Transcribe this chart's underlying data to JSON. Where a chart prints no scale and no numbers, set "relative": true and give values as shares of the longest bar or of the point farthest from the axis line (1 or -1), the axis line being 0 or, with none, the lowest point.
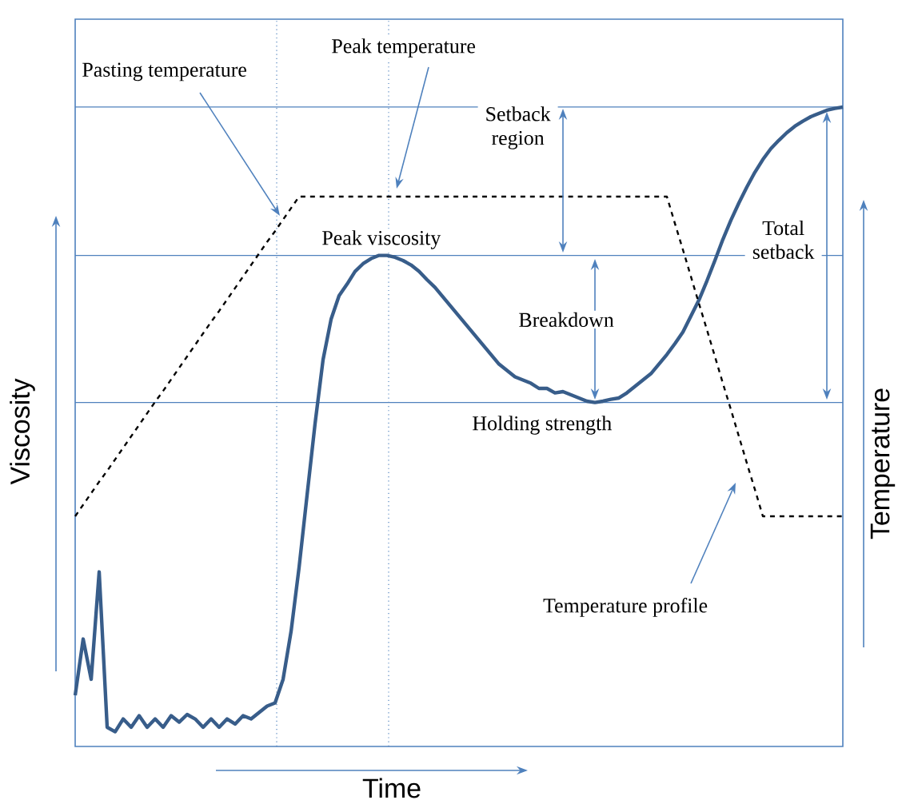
{
  "chart_data": {
    "type": "line",
    "relative": true,
    "xlabel": "Time",
    "ylabel": "Viscosity",
    "y2label": "Temperature",
    "categories": [
      null,
      null,
      null,
      null,
      null,
      null,
      null,
      null,
      null,
      null,
      null,
      null,
      null,
      null,
      null,
      null,
      null,
      null,
      null,
      null,
      null,
      null,
      null,
      null,
      null,
      null,
      null,
      null,
      null,
      null,
      null,
      null,
      null,
      null,
      null,
      null,
      null,
      null,
      null,
      null,
      null,
      null,
      null,
      null,
      null,
      null,
      null,
      null,
      null,
      null,
      null,
      null,
      null,
      null,
      null,
      null,
      null,
      null,
      null,
      null,
      null,
      null,
      null,
      null,
      null,
      null,
      null,
      null,
      null,
      null,
      null,
      null,
      null,
      null,
      null,
      null,
      null,
      null,
      null,
      null,
      null,
      null,
      null,
      null,
      null,
      null,
      null,
      null,
      null,
      null,
      null,
      null,
      null,
      null,
      null,
      null,
      null
    ],
    "series": [
      {
        "color": "#385d8a",
        "line_style": "solid",
        "values": [
          0.08,
          0.168,
          0.105,
          0.273,
          0.03,
          0.023,
          0.043,
          0.03,
          0.048,
          0.03,
          0.043,
          0.03,
          0.048,
          0.038,
          0.05,
          0.043,
          0.03,
          0.043,
          0.03,
          0.043,
          0.035,
          0.048,
          0.043,
          0.053,
          0.063,
          0.068,
          0.105,
          0.18,
          0.28,
          0.393,
          0.505,
          0.605,
          0.668,
          0.705,
          0.723,
          0.743,
          0.755,
          0.763,
          0.768,
          0.768,
          0.765,
          0.76,
          0.753,
          0.743,
          0.73,
          0.718,
          0.703,
          0.688,
          0.673,
          0.658,
          0.643,
          0.628,
          0.613,
          0.598,
          0.588,
          0.578,
          0.573,
          0.568,
          0.56,
          0.56,
          0.553,
          0.555,
          0.55,
          0.545,
          0.54,
          0.538,
          0.54,
          0.543,
          0.545,
          0.553,
          0.563,
          0.573,
          0.583,
          0.598,
          0.613,
          0.63,
          0.648,
          0.673,
          0.698,
          0.728,
          0.76,
          0.793,
          0.823,
          0.85,
          0.875,
          0.898,
          0.918,
          0.935,
          0.948,
          0.96,
          0.97,
          0.978,
          0.985,
          0.99,
          0.995,
          0.998,
          1
        ]
      },
      {
        "name": "Temperature profile",
        "color": "#000000",
        "line_style": "dashed",
        "values": [
          0.36,
          0.378,
          0.396,
          0.414,
          0.431,
          0.449,
          0.467,
          0.485,
          0.503,
          0.521,
          0.539,
          0.556,
          0.574,
          0.592,
          0.61,
          0.628,
          0.646,
          0.664,
          0.681,
          0.699,
          0.717,
          0.735,
          0.753,
          0.771,
          0.789,
          0.806,
          0.824,
          0.842,
          0.86,
          0.86,
          0.86,
          0.86,
          0.86,
          0.86,
          0.86,
          0.86,
          0.86,
          0.86,
          0.86,
          0.86,
          0.86,
          0.86,
          0.86,
          0.86,
          0.86,
          0.86,
          0.86,
          0.86,
          0.86,
          0.86,
          0.86,
          0.86,
          0.86,
          0.86,
          0.86,
          0.86,
          0.86,
          0.86,
          0.86,
          0.86,
          0.86,
          0.86,
          0.86,
          0.86,
          0.86,
          0.86,
          0.86,
          0.86,
          0.86,
          0.86,
          0.86,
          0.86,
          0.86,
          0.86,
          0.86,
          0.818,
          0.777,
          0.735,
          0.693,
          0.652,
          0.61,
          0.568,
          0.527,
          0.485,
          0.443,
          0.402,
          0.36,
          0.36,
          0.36,
          0.36,
          0.36,
          0.36,
          0.36,
          0.36,
          0.36,
          0.36,
          0.36
        ]
      }
    ],
    "ref_lines": [
      {
        "axis": "y",
        "value": 0.768,
        "color": "#4f81bd",
        "line_style": "solid"
      },
      {
        "axis": "y",
        "value": 0.538,
        "color": "#4f81bd",
        "line_style": "solid"
      },
      {
        "axis": "y",
        "value": 1,
        "color": "#4f81bd",
        "line_style": "solid"
      }
    ],
    "annotations": [
      "Pasting temperature",
      "Peak temperature",
      "Setback region",
      "Peak viscosity",
      "Breakdown",
      "Holding strength",
      "Total setback"
    ]
  }
}
